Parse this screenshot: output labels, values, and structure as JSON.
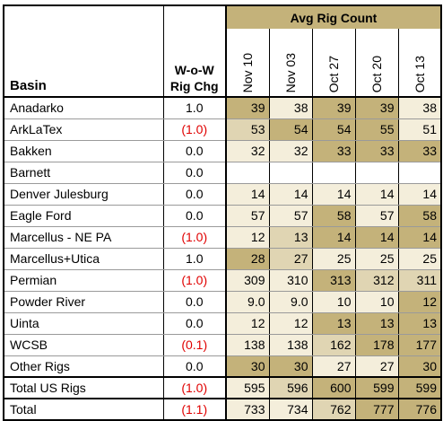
{
  "table": {
    "basin_header": "Basin",
    "wow_header_line1": "W-o-W",
    "wow_header_line2": "Rig Chg",
    "group_title": "Avg Rig Count",
    "dates": [
      "Nov 10",
      "Nov 03",
      "Oct 27",
      "Oct 20",
      "Oct 13"
    ],
    "rows": [
      {
        "basin": "Anadarko",
        "wow": "1.0",
        "neg": false,
        "vals": [
          "39",
          "38",
          "39",
          "39",
          "38"
        ],
        "shade": [
          "#c4b27a",
          "#f4eedb",
          "#c4b27a",
          "#c4b27a",
          "#f4eedb"
        ]
      },
      {
        "basin": "ArkLaTex",
        "wow": "(1.0)",
        "neg": true,
        "vals": [
          "53",
          "54",
          "54",
          "55",
          "51"
        ],
        "shade": [
          "#e0d5b3",
          "#c4b27a",
          "#c4b27a",
          "#c4b27a",
          "#f4eedb"
        ]
      },
      {
        "basin": "Bakken",
        "wow": "0.0",
        "neg": false,
        "vals": [
          "32",
          "32",
          "33",
          "33",
          "33"
        ],
        "shade": [
          "#f4eedb",
          "#f4eedb",
          "#c4b27a",
          "#c4b27a",
          "#c4b27a"
        ]
      },
      {
        "basin": "Barnett",
        "wow": "0.0",
        "neg": false,
        "vals": [
          "",
          "",
          "",
          "",
          ""
        ],
        "shade": [
          "#ffffff",
          "#ffffff",
          "#ffffff",
          "#ffffff",
          "#ffffff"
        ]
      },
      {
        "basin": "Denver Julesburg",
        "wow": "0.0",
        "neg": false,
        "vals": [
          "14",
          "14",
          "14",
          "14",
          "14"
        ],
        "shade": [
          "#f4eedb",
          "#f4eedb",
          "#f4eedb",
          "#f4eedb",
          "#f4eedb"
        ]
      },
      {
        "basin": "Eagle Ford",
        "wow": "0.0",
        "neg": false,
        "vals": [
          "57",
          "57",
          "58",
          "57",
          "58"
        ],
        "shade": [
          "#f4eedb",
          "#f4eedb",
          "#c4b27a",
          "#f4eedb",
          "#c4b27a"
        ]
      },
      {
        "basin": "Marcellus - NE PA",
        "wow": "(1.0)",
        "neg": true,
        "vals": [
          "12",
          "13",
          "14",
          "14",
          "14"
        ],
        "shade": [
          "#f4eedb",
          "#e0d5b3",
          "#c4b27a",
          "#c4b27a",
          "#c4b27a"
        ]
      },
      {
        "basin": "Marcellus+Utica",
        "wow": "1.0",
        "neg": false,
        "vals": [
          "28",
          "27",
          "25",
          "25",
          "25"
        ],
        "shade": [
          "#c4b27a",
          "#e0d5b3",
          "#f4eedb",
          "#f4eedb",
          "#f4eedb"
        ]
      },
      {
        "basin": "Permian",
        "wow": "(1.0)",
        "neg": true,
        "vals": [
          "309",
          "310",
          "313",
          "312",
          "311"
        ],
        "shade": [
          "#f4eedb",
          "#f4eedb",
          "#c4b27a",
          "#e0d5b3",
          "#e0d5b3"
        ]
      },
      {
        "basin": "Powder River",
        "wow": "0.0",
        "neg": false,
        "vals": [
          "9.0",
          "9.0",
          "10",
          "10",
          "12"
        ],
        "shade": [
          "#f4eedb",
          "#f4eedb",
          "#f4eedb",
          "#f4eedb",
          "#c4b27a"
        ]
      },
      {
        "basin": "Uinta",
        "wow": "0.0",
        "neg": false,
        "vals": [
          "12",
          "12",
          "13",
          "13",
          "13"
        ],
        "shade": [
          "#f4eedb",
          "#f4eedb",
          "#c4b27a",
          "#c4b27a",
          "#c4b27a"
        ]
      },
      {
        "basin": "WCSB",
        "wow": "(0.1)",
        "neg": true,
        "vals": [
          "138",
          "138",
          "162",
          "178",
          "177"
        ],
        "shade": [
          "#f4eedb",
          "#f4eedb",
          "#e0d5b3",
          "#c4b27a",
          "#c4b27a"
        ]
      },
      {
        "basin": "Other Rigs",
        "wow": "0.0",
        "neg": false,
        "vals": [
          "30",
          "30",
          "27",
          "27",
          "30"
        ],
        "shade": [
          "#c4b27a",
          "#c4b27a",
          "#f4eedb",
          "#f4eedb",
          "#c4b27a"
        ]
      },
      {
        "basin": "Total US Rigs",
        "wow": "(1.0)",
        "neg": true,
        "vals": [
          "595",
          "596",
          "600",
          "599",
          "599"
        ],
        "shade": [
          "#f4eedb",
          "#e0d5b3",
          "#c4b27a",
          "#c4b27a",
          "#c4b27a"
        ]
      },
      {
        "basin": "Total",
        "wow": "(1.1)",
        "neg": true,
        "vals": [
          "733",
          "734",
          "762",
          "777",
          "776"
        ],
        "shade": [
          "#f4eedb",
          "#f4eedb",
          "#e0d5b3",
          "#c4b27a",
          "#c4b27a"
        ]
      }
    ]
  },
  "colors": {
    "dark": "#c4b27a",
    "mid": "#e0d5b3",
    "light": "#f4eedb",
    "negative": "#e00000"
  }
}
